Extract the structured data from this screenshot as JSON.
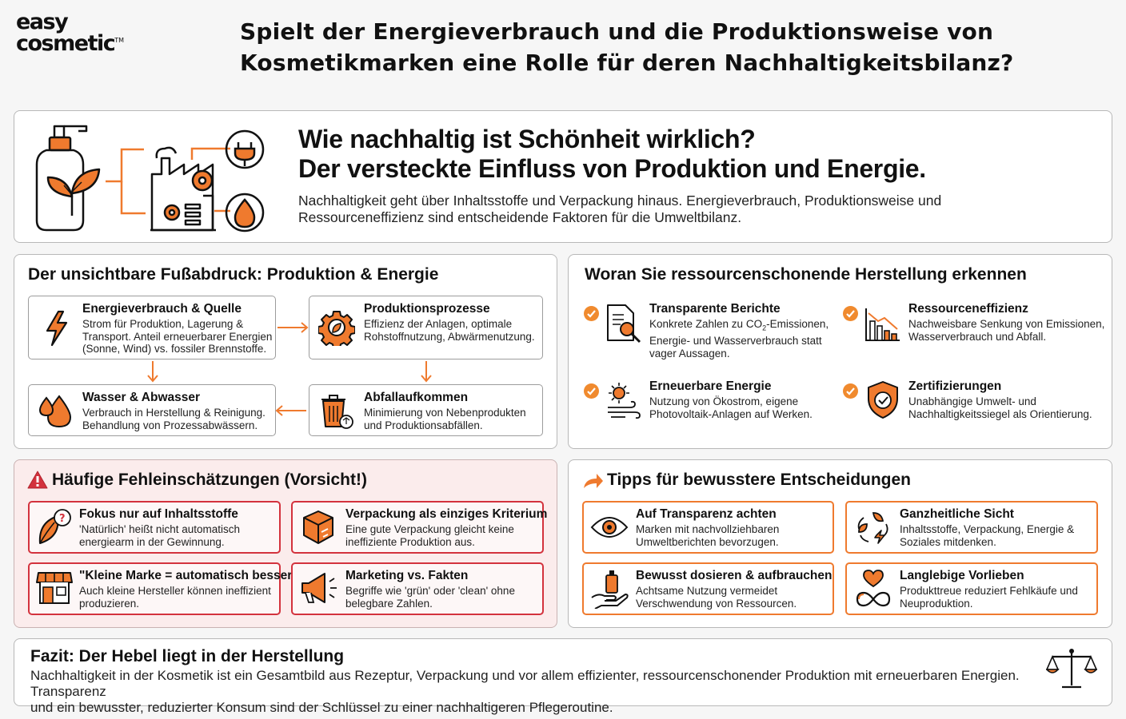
{
  "logo": {
    "line1": "easy",
    "line2": "cosmetic",
    "tm": "TM"
  },
  "title": {
    "line1": "Spielt der Energieverbrauch und die Produktionsweise von",
    "line2": "Kosmetikmarken eine Rolle für deren Nachhaltigkeitsbilanz?"
  },
  "hero": {
    "title_line1": "Wie nachhaltig ist Schönheit wirklich?",
    "title_line2": "Der versteckte Einfluss von Produktion und Energie.",
    "sub_line1": "Nachhaltigkeit geht über Inhaltsstoffe und Verpackung hinaus. Energieverbrauch, Produktionsweise und",
    "sub_line2": "Ressourceneffizienz sind entscheidende Faktoren für die Umweltbilanz."
  },
  "footprint": {
    "title": "Der unsichtbare Fußabdruck: Produktion & Energie",
    "items": [
      {
        "title": "Energieverbrauch & Quelle",
        "l1": "Strom für Produktion, Lagerung &",
        "l2": "Transport. Anteil erneuerbarer Energien",
        "l3": "(Sonne, Wind) vs. fossiler Brennstoffe."
      },
      {
        "title": "Produktionsprozesse",
        "l1": "Effizienz der Anlagen, optimale",
        "l2": "Rohstoffnutzung, Abwärmenutzung.",
        "l3": ""
      },
      {
        "title": "Wasser & Abwasser",
        "l1": "Verbrauch in Herstellung & Reinigung.",
        "l2": "Behandlung von Prozessabwässern.",
        "l3": ""
      },
      {
        "title": "Abfallaufkommen",
        "l1": "Minimierung von Nebenprodukten",
        "l2": "und Produktionsabfällen.",
        "l3": ""
      }
    ]
  },
  "recognize": {
    "title": "Woran Sie ressourcenschonende Herstellung erkennen",
    "items": [
      {
        "title": "Transparente Berichte",
        "l1a": "Konkrete Zahlen zu CO",
        "l1sub": "2",
        "l1b": "-Emissionen,",
        "l2": "Energie- und Wasserverbrauch statt",
        "l3": "vager Aussagen."
      },
      {
        "title": "Ressourceneffizienz",
        "l1": "Nachweisbare Senkung von Emissionen,",
        "l2": "Wasserverbrauch und Abfall."
      },
      {
        "title": "Erneuerbare Energie",
        "l1": "Nutzung von Ökostrom, eigene",
        "l2": "Photovoltaik-Anlagen auf Werken."
      },
      {
        "title": "Zertifizierungen",
        "l1": "Unabhängige Umwelt- und",
        "l2": "Nachhaltigkeitssiegel als Orientierung."
      }
    ]
  },
  "misconceptions": {
    "title": "Häufige Fehleinschätzungen (Vorsicht!)",
    "items": [
      {
        "title": "Fokus nur auf Inhaltsstoffe",
        "l1": "'Natürlich' heißt nicht automatisch",
        "l2": "energiearm in der Gewinnung."
      },
      {
        "title": "Verpackung als einziges Kriterium",
        "l1": "Eine gute Verpackung gleicht keine",
        "l2": "ineffiziente Produktion aus."
      },
      {
        "title": "\"Kleine Marke = automatisch besser\"",
        "l1": "Auch kleine Hersteller können ineffizient",
        "l2": "produzieren."
      },
      {
        "title": "Marketing vs. Fakten",
        "l1": "Begriffe wie 'grün' oder 'clean' ohne",
        "l2": "belegbare Zahlen."
      }
    ]
  },
  "tips": {
    "title": "Tipps für bewusstere Entscheidungen",
    "items": [
      {
        "title": "Auf Transparenz achten",
        "l1": "Marken mit nachvollziehbaren",
        "l2": "Umweltberichten bevorzugen."
      },
      {
        "title": "Ganzheitliche Sicht",
        "l1": "Inhaltsstoffe, Verpackung, Energie &",
        "l2": "Soziales mitdenken."
      },
      {
        "title": "Bewusst dosieren & aufbrauchen",
        "l1": "Achtsame Nutzung vermeidet",
        "l2": "Verschwendung von Ressourcen."
      },
      {
        "title": "Langlebige Vorlieben",
        "l1": "Produkttreue reduziert Fehlkäufe und",
        "l2": "Neuproduktion."
      }
    ]
  },
  "fazit": {
    "title": "Fazit: Der Hebel liegt in der Herstellung",
    "l1": "Nachhaltigkeit in der Kosmetik ist ein Gesamtbild aus Rezeptur, Verpackung und vor allem effizienter, ressourcenschonender Produktion mit erneuerbaren Energien. Transparenz",
    "l2": "und ein bewusster, reduzierter Konsum sind der Schlüssel zu einer nachhaltigeren Pflegeroutine."
  },
  "colors": {
    "accent": "#ef7a2e",
    "warning": "#d3323d",
    "text": "#111111"
  },
  "icons": [
    "pump-bottle-leaf-icon",
    "factory-gear-icon",
    "plug-icon",
    "water-drop-icon",
    "lightning-icon",
    "gear-leaf-icon",
    "water-drops-icon",
    "trash-recycle-icon",
    "document-search-icon",
    "chart-down-icon",
    "sun-wind-icon",
    "shield-check-icon",
    "warning-icon",
    "leaf-question-icon",
    "box-x-icon",
    "store-icon",
    "megaphone-icon",
    "arrow-icon",
    "eye-icon",
    "cycle-leaves-icon",
    "hand-bottle-icon",
    "heart-infinity-icon",
    "scales-icon",
    "check-icon"
  ]
}
